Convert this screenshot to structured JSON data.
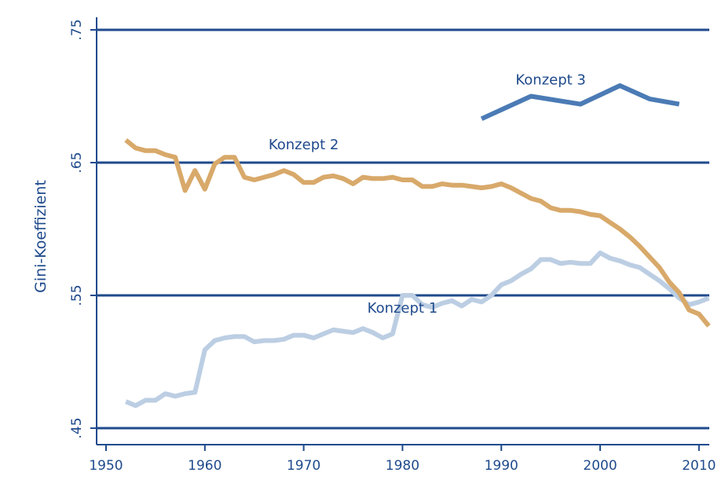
{
  "chart_data": {
    "type": "line",
    "title": "",
    "xlabel": "",
    "ylabel": "Gini-Koeffizient",
    "xlim": [
      1950,
      2012
    ],
    "ylim": [
      0.45,
      0.75
    ],
    "x_ticks": [
      1950,
      1960,
      1970,
      1980,
      1990,
      2000,
      2010
    ],
    "y_ticks": [
      {
        "value": 0.45,
        "label": ".45"
      },
      {
        "value": 0.55,
        "label": ".55"
      },
      {
        "value": 0.65,
        "label": ".65"
      },
      {
        "value": 0.75,
        "label": ".75"
      }
    ],
    "grid": "horizontal-at-ticks",
    "colors": {
      "axis": "#1f4a8c",
      "konzept1": "#bccee3",
      "konzept2": "#d8a96a",
      "konzept3": "#4b7bb5"
    },
    "series": [
      {
        "name": "Konzept 1",
        "label_x": 1980,
        "label_y": 0.537,
        "x": [
          1952,
          1953,
          1954,
          1955,
          1956,
          1957,
          1958,
          1959,
          1960,
          1961,
          1962,
          1963,
          1964,
          1965,
          1966,
          1967,
          1968,
          1969,
          1970,
          1971,
          1972,
          1973,
          1974,
          1975,
          1976,
          1977,
          1978,
          1979,
          1980,
          1981,
          1982,
          1983,
          1984,
          1985,
          1986,
          1987,
          1988,
          1989,
          1990,
          1991,
          1992,
          1993,
          1994,
          1995,
          1996,
          1997,
          1998,
          1999,
          2000,
          2001,
          2002,
          2003,
          2004,
          2005,
          2006,
          2007,
          2008,
          2009,
          2010,
          2011
        ],
        "y": [
          0.47,
          0.467,
          0.471,
          0.471,
          0.476,
          0.474,
          0.476,
          0.477,
          0.509,
          0.516,
          0.518,
          0.519,
          0.519,
          0.515,
          0.516,
          0.516,
          0.517,
          0.52,
          0.52,
          0.518,
          0.521,
          0.524,
          0.523,
          0.522,
          0.525,
          0.522,
          0.518,
          0.521,
          0.55,
          0.55,
          0.543,
          0.541,
          0.544,
          0.546,
          0.542,
          0.547,
          0.545,
          0.55,
          0.558,
          0.561,
          0.566,
          0.57,
          0.577,
          0.577,
          0.574,
          0.575,
          0.574,
          0.574,
          0.582,
          0.578,
          0.576,
          0.573,
          0.571,
          0.566,
          0.561,
          0.555,
          0.548,
          0.543,
          0.545,
          0.548
        ]
      },
      {
        "name": "Konzept 2",
        "label_x": 1970,
        "label_y": 0.66,
        "x": [
          1952,
          1953,
          1954,
          1955,
          1956,
          1957,
          1958,
          1959,
          1960,
          1961,
          1962,
          1963,
          1964,
          1965,
          1966,
          1967,
          1968,
          1969,
          1970,
          1971,
          1972,
          1973,
          1974,
          1975,
          1976,
          1977,
          1978,
          1979,
          1980,
          1981,
          1982,
          1983,
          1984,
          1985,
          1986,
          1987,
          1988,
          1989,
          1990,
          1991,
          1992,
          1993,
          1994,
          1995,
          1996,
          1997,
          1998,
          1999,
          2000,
          2001,
          2002,
          2003,
          2004,
          2005,
          2006,
          2007,
          2008,
          2009,
          2010,
          2011
        ],
        "y": [
          0.667,
          0.661,
          0.659,
          0.659,
          0.656,
          0.654,
          0.629,
          0.644,
          0.63,
          0.649,
          0.654,
          0.654,
          0.639,
          0.637,
          0.639,
          0.641,
          0.644,
          0.641,
          0.635,
          0.635,
          0.639,
          0.64,
          0.638,
          0.634,
          0.639,
          0.638,
          0.638,
          0.639,
          0.637,
          0.637,
          0.632,
          0.632,
          0.634,
          0.633,
          0.633,
          0.632,
          0.631,
          0.632,
          0.634,
          0.631,
          0.627,
          0.623,
          0.621,
          0.616,
          0.614,
          0.614,
          0.613,
          0.611,
          0.61,
          0.605,
          0.6,
          0.594,
          0.587,
          0.579,
          0.571,
          0.56,
          0.552,
          0.539,
          0.536,
          0.527
        ]
      },
      {
        "name": "Konzept 3",
        "label_x": 1995,
        "label_y": 0.709,
        "x": [
          1988,
          1993,
          1998,
          2002,
          2005,
          2008
        ],
        "y": [
          0.683,
          0.7,
          0.694,
          0.708,
          0.698,
          0.694
        ]
      }
    ]
  }
}
